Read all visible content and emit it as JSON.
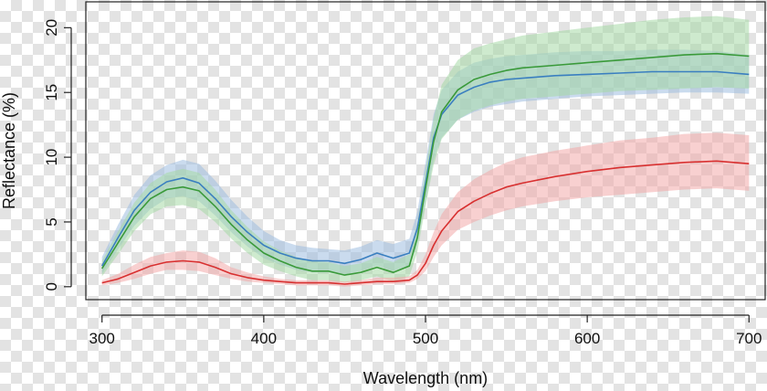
{
  "chart_data": {
    "type": "area",
    "title": "",
    "xlabel": "Wavelength (nm)",
    "ylabel": "Reflectance (%)",
    "xlim": [
      290,
      710
    ],
    "ylim": [
      -1,
      22
    ],
    "x_ticks": [
      300,
      400,
      500,
      600,
      700
    ],
    "y_ticks": [
      0,
      5,
      10,
      15,
      20
    ],
    "x_tick_labels": [
      "300",
      "400",
      "500",
      "600",
      "700"
    ],
    "y_tick_labels": [
      "0",
      "5",
      "10",
      "15",
      "20"
    ],
    "legend": "none",
    "grid": false,
    "x": [
      300,
      310,
      320,
      330,
      340,
      350,
      360,
      370,
      380,
      390,
      400,
      410,
      420,
      430,
      440,
      450,
      460,
      470,
      480,
      490,
      495,
      500,
      505,
      510,
      520,
      530,
      540,
      550,
      560,
      580,
      600,
      620,
      640,
      660,
      680,
      700
    ],
    "series": [
      {
        "color": "#3a7fc0",
        "band_color": "#9fbde0",
        "values": [
          1.6,
          3.8,
          5.9,
          7.3,
          8.1,
          8.4,
          8.0,
          6.8,
          5.4,
          4.2,
          3.2,
          2.6,
          2.2,
          2.0,
          2.0,
          1.8,
          2.1,
          2.6,
          2.2,
          2.6,
          4.5,
          8.0,
          11.5,
          13.3,
          14.8,
          15.4,
          15.8,
          16.0,
          16.1,
          16.3,
          16.4,
          16.5,
          16.6,
          16.6,
          16.6,
          16.4
        ],
        "lower": [
          1.0,
          2.9,
          4.7,
          6.0,
          6.8,
          7.0,
          6.6,
          5.5,
          4.2,
          3.1,
          2.2,
          1.7,
          1.3,
          1.1,
          1.1,
          0.9,
          1.2,
          1.6,
          1.2,
          1.6,
          3.3,
          6.5,
          9.8,
          11.5,
          12.9,
          13.5,
          13.9,
          14.1,
          14.3,
          14.5,
          14.7,
          14.8,
          14.9,
          15.0,
          15.0,
          14.9
        ],
        "upper": [
          2.3,
          4.8,
          7.1,
          8.6,
          9.4,
          9.8,
          9.5,
          8.2,
          6.7,
          5.4,
          4.3,
          3.6,
          3.2,
          3.0,
          2.9,
          2.8,
          3.1,
          3.6,
          3.3,
          3.7,
          5.8,
          9.6,
          13.3,
          15.2,
          16.6,
          17.3,
          17.6,
          17.8,
          17.9,
          18.1,
          18.2,
          18.2,
          18.3,
          18.3,
          18.2,
          17.9
        ]
      },
      {
        "color": "#3a9a3a",
        "band_color": "#a6d8a6",
        "values": [
          1.4,
          3.4,
          5.4,
          6.8,
          7.5,
          7.7,
          7.4,
          6.2,
          4.8,
          3.6,
          2.6,
          2.0,
          1.5,
          1.2,
          1.2,
          0.9,
          1.1,
          1.5,
          1.1,
          1.6,
          3.8,
          7.6,
          11.2,
          13.5,
          15.2,
          16.0,
          16.4,
          16.7,
          16.9,
          17.1,
          17.3,
          17.5,
          17.7,
          17.9,
          18.0,
          17.8
        ],
        "lower": [
          0.8,
          2.5,
          4.3,
          5.6,
          6.2,
          6.3,
          6.0,
          5.0,
          3.7,
          2.6,
          1.7,
          1.2,
          0.8,
          0.5,
          0.5,
          0.3,
          0.5,
          0.8,
          0.4,
          0.8,
          2.7,
          6.2,
          9.4,
          11.4,
          12.9,
          13.6,
          14.0,
          14.3,
          14.5,
          14.7,
          14.9,
          15.1,
          15.2,
          15.3,
          15.4,
          15.3
        ],
        "upper": [
          2.0,
          4.3,
          6.5,
          8.0,
          8.8,
          9.1,
          8.8,
          7.5,
          5.9,
          4.6,
          3.5,
          2.8,
          2.3,
          2.0,
          1.9,
          1.6,
          1.8,
          2.3,
          1.9,
          2.5,
          5.0,
          9.0,
          13.0,
          15.6,
          17.5,
          18.4,
          18.8,
          19.1,
          19.4,
          19.7,
          20.0,
          20.3,
          20.6,
          20.8,
          20.9,
          20.6
        ]
      },
      {
        "color": "#d83030",
        "band_color": "#f2a9a9",
        "values": [
          0.3,
          0.6,
          1.1,
          1.6,
          1.9,
          2.0,
          1.9,
          1.5,
          1.0,
          0.7,
          0.5,
          0.4,
          0.3,
          0.3,
          0.3,
          0.2,
          0.3,
          0.4,
          0.4,
          0.5,
          0.9,
          1.8,
          3.2,
          4.3,
          5.8,
          6.6,
          7.2,
          7.7,
          8.0,
          8.5,
          8.9,
          9.2,
          9.4,
          9.6,
          9.7,
          9.5
        ],
        "lower": [
          0.1,
          0.3,
          0.6,
          1.0,
          1.3,
          1.3,
          1.2,
          0.9,
          0.6,
          0.4,
          0.3,
          0.2,
          0.1,
          0.1,
          0.1,
          0.0,
          0.1,
          0.2,
          0.2,
          0.3,
          0.6,
          1.2,
          2.3,
          3.2,
          4.4,
          5.0,
          5.5,
          5.9,
          6.2,
          6.6,
          6.9,
          7.1,
          7.3,
          7.5,
          7.6,
          7.4
        ],
        "upper": [
          0.5,
          1.0,
          1.7,
          2.3,
          2.6,
          2.8,
          2.7,
          2.2,
          1.5,
          1.1,
          0.8,
          0.6,
          0.5,
          0.5,
          0.5,
          0.4,
          0.5,
          0.7,
          0.7,
          0.8,
          1.3,
          2.5,
          4.2,
          5.6,
          7.3,
          8.3,
          9.0,
          9.6,
          10.0,
          10.5,
          10.9,
          11.3,
          11.5,
          11.8,
          11.9,
          11.7
        ]
      }
    ]
  }
}
